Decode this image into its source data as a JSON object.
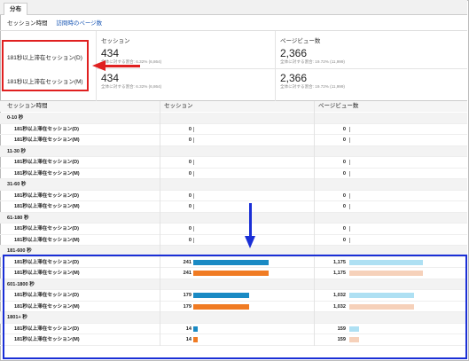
{
  "tab": {
    "label": "分布"
  },
  "subnav": {
    "active": "セッション時間",
    "link": "訪問時のページ数"
  },
  "segments": [
    "181秒以上滞在セッション(D)",
    "181秒以上滞在セッション(M)"
  ],
  "metrics": {
    "sessions": {
      "label": "セッション",
      "rows": [
        {
          "value": "434",
          "sub": "全体に対する割合: 6.32% (6,864)"
        },
        {
          "value": "434",
          "sub": "全体に対する割合: 6.32% (6,864)"
        }
      ]
    },
    "pageviews": {
      "label": "ページビュー数",
      "rows": [
        {
          "value": "2,366",
          "sub": "全体に対する割合: 19.72% (11,999)"
        },
        {
          "value": "2,366",
          "sub": "全体に対する割合: 19.72% (11,999)"
        }
      ]
    }
  },
  "table": {
    "headers": {
      "duration": "セッション時間",
      "sessions": "セッション",
      "pageviews": "ページビュー数"
    },
    "groups": [
      {
        "label": "0-10 秒",
        "rows": [
          {
            "segment": "181秒以上滞在セッション(D)",
            "sessions": "0",
            "s_frac": 0,
            "pageviews": "0",
            "p_frac": 0
          },
          {
            "segment": "181秒以上滞在セッション(M)",
            "sessions": "0",
            "s_frac": 0,
            "pageviews": "0",
            "p_frac": 0
          }
        ]
      },
      {
        "label": "11-30 秒",
        "rows": [
          {
            "segment": "181秒以上滞在セッション(D)",
            "sessions": "0",
            "s_frac": 0,
            "pageviews": "0",
            "p_frac": 0
          },
          {
            "segment": "181秒以上滞在セッション(M)",
            "sessions": "0",
            "s_frac": 0,
            "pageviews": "0",
            "p_frac": 0
          }
        ]
      },
      {
        "label": "31-60 秒",
        "rows": [
          {
            "segment": "181秒以上滞在セッション(D)",
            "sessions": "0",
            "s_frac": 0,
            "pageviews": "0",
            "p_frac": 0
          },
          {
            "segment": "181秒以上滞在セッション(M)",
            "sessions": "0",
            "s_frac": 0,
            "pageviews": "0",
            "p_frac": 0
          }
        ]
      },
      {
        "label": "61-180 秒",
        "rows": [
          {
            "segment": "181秒以上滞在セッション(D)",
            "sessions": "0",
            "s_frac": 0,
            "pageviews": "0",
            "p_frac": 0
          },
          {
            "segment": "181秒以上滞在セッション(M)",
            "sessions": "0",
            "s_frac": 0,
            "pageviews": "0",
            "p_frac": 0
          }
        ]
      },
      {
        "label": "181-600 秒",
        "rows": [
          {
            "segment": "181秒以上滞在セッション(D)",
            "sessions": "241",
            "s_frac": 1.0,
            "pageviews": "1,175",
            "p_frac": 1.0
          },
          {
            "segment": "181秒以上滞在セッション(M)",
            "sessions": "241",
            "s_frac": 1.0,
            "pageviews": "1,175",
            "p_frac": 1.0
          }
        ]
      },
      {
        "label": "601-1800 秒",
        "rows": [
          {
            "segment": "181秒以上滞在セッション(D)",
            "sessions": "179",
            "s_frac": 0.743,
            "pageviews": "1,032",
            "p_frac": 0.878
          },
          {
            "segment": "181秒以上滞在セッション(M)",
            "sessions": "179",
            "s_frac": 0.743,
            "pageviews": "1,032",
            "p_frac": 0.878
          }
        ]
      },
      {
        "label": "1801+ 秒",
        "rows": [
          {
            "segment": "181秒以上滞在セッション(D)",
            "sessions": "14",
            "s_frac": 0.058,
            "pageviews": "159",
            "p_frac": 0.135
          },
          {
            "segment": "181秒以上滞在セッション(M)",
            "sessions": "14",
            "s_frac": 0.058,
            "pageviews": "159",
            "p_frac": 0.135
          }
        ]
      }
    ]
  },
  "colors": {
    "seg_d_session": "#1a8ac4",
    "seg_m_session": "#f07b23",
    "seg_d_pageview": "#aee0f3",
    "seg_m_pageview": "#f6d1ba",
    "annotation_red": "#e02020",
    "annotation_blue": "#1a2fd6"
  }
}
